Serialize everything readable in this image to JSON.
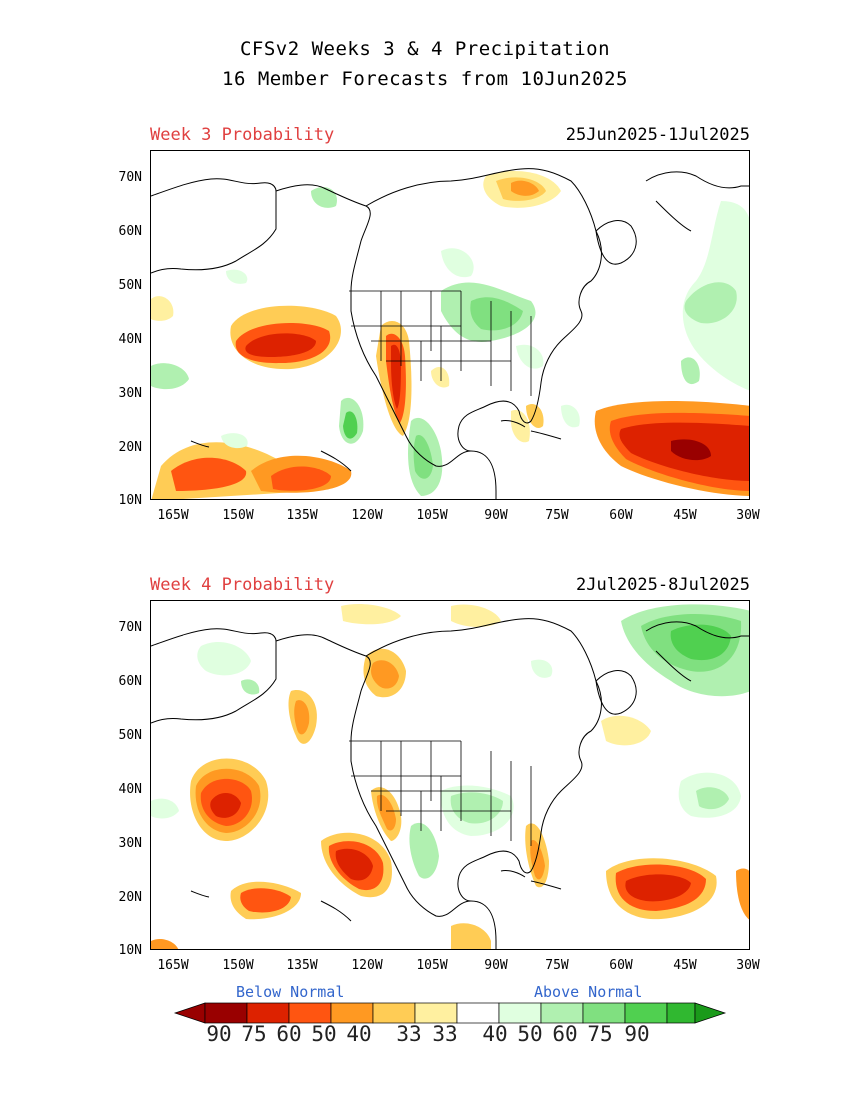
{
  "title": {
    "line1": "CFSv2 Weeks 3 & 4 Precipitation",
    "line2": "16 Member Forecasts from 10Jun2025"
  },
  "panels": [
    {
      "week_label": "Week 3 Probability",
      "date_range": "25Jun2025-1Jul2025"
    },
    {
      "week_label": "Week 4 Probability",
      "date_range": "2Jul2025-8Jul2025"
    }
  ],
  "axes": {
    "lat_ticks": [
      "70N",
      "60N",
      "50N",
      "40N",
      "30N",
      "20N",
      "10N"
    ],
    "lon_ticks": [
      "165W",
      "150W",
      "135W",
      "120W",
      "105W",
      "90W",
      "75W",
      "60W",
      "45W",
      "30W"
    ]
  },
  "legend": {
    "below_label": "Below Normal",
    "above_label": "Above Normal",
    "values": [
      "90",
      "75",
      "60",
      "50",
      "40",
      "33",
      "33",
      "40",
      "50",
      "60",
      "75",
      "90"
    ],
    "colors": {
      "below": [
        "#990000",
        "#dd2200",
        "#ff5511",
        "#ff9922",
        "#ffcc55",
        "#fff0a0"
      ],
      "neutral": "#ffffff",
      "above": [
        "#e0ffe0",
        "#b0f0b0",
        "#80e080",
        "#50d050",
        "#30b830",
        "#1a9a1a"
      ]
    }
  }
}
